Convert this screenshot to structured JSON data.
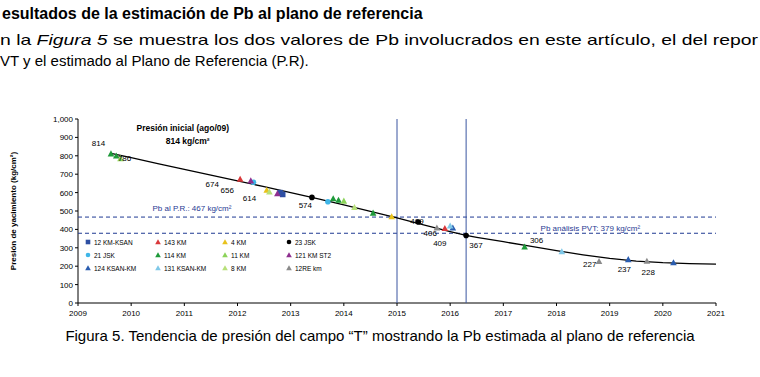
{
  "heading": "esultados de la estimación de Pb al plano de referencia",
  "paragraph": [
    [
      "n la ",
      "Figura 5",
      " se muestra los dos valores de Pb involucrados en este artículo, el del repor"
    ],
    [
      "VT y el estimado al Plano de Referencia (P.R)."
    ]
  ],
  "caption": "Figura 5. Tendencia de presión del campo “T” mostrando la Pb estimada al plano de referencia",
  "chart_data": {
    "type": "scatter",
    "y_label": "Presión de yacimiento (kg/cm²)",
    "xlim": [
      2009,
      2021
    ],
    "xticks": [
      2009,
      2010,
      2011,
      2012,
      2013,
      2014,
      2015,
      2016,
      2017,
      2018,
      2019,
      2020,
      2021
    ],
    "ylim": [
      0,
      1000
    ],
    "yticks": [
      0,
      100,
      200,
      300,
      400,
      500,
      600,
      700,
      800,
      900,
      {
        "value": 1000,
        "label": "1,000"
      }
    ],
    "grid": false,
    "legend": "lower left",
    "hlines": [
      467,
      379
    ],
    "vlines": [
      2015.0,
      2016.3
    ],
    "series": [
      {
        "type": "line",
        "color": "#000000",
        "line_style": "solid",
        "x": [
          2009.6,
          2010,
          2010.5,
          2011,
          2011.5,
          2012,
          2012.5,
          2013,
          2013.5,
          2014,
          2014.5,
          2015,
          2015.5,
          2016,
          2016.3,
          2016.5,
          2017,
          2017.5,
          2018,
          2018.5,
          2019,
          2019.5,
          2020,
          2020.5,
          2021
        ],
        "values": [
          814,
          790,
          758,
          726,
          695,
          664,
          632,
          600,
          567,
          533,
          498,
          462,
          425,
          388,
          367,
          357,
          333,
          309,
          285,
          262,
          242,
          228,
          219,
          214,
          211
        ]
      },
      {
        "name": "12 KM-KSAN",
        "color": "#2e4fa3",
        "marker": "square",
        "x": [
          2012.8,
          2012.85
        ],
        "values": [
          600,
          590
        ]
      },
      {
        "name": "143 KM",
        "color": "#d9383a",
        "marker": "triangle",
        "x": [
          2012.05,
          2015.9
        ],
        "values": [
          674,
          406
        ]
      },
      {
        "name": "4 KM",
        "color": "#e8c21c",
        "marker": "triangle",
        "x": [
          2012.55,
          2014.9
        ],
        "values": [
          614,
          470
        ]
      },
      {
        "name": "23 JSK",
        "color": "#000000",
        "marker": "circle",
        "x": [
          2013.4,
          2015.4,
          2016.3
        ],
        "values": [
          574,
          440,
          367
        ]
      },
      {
        "name": "21 JSK",
        "color": "#3fb6e8",
        "marker": "circle",
        "x": [
          2012.3,
          2013.7
        ],
        "values": [
          656,
          550
        ]
      },
      {
        "name": "114 KM",
        "color": "#1e9a3a",
        "marker": "triangle",
        "x": [
          2009.62,
          2009.72,
          2013.8,
          2013.9,
          2014.55,
          2017.4
        ],
        "values": [
          812,
          800,
          568,
          560,
          490,
          306
        ]
      },
      {
        "name": "11 KM",
        "color": "#8cd35a",
        "marker": "triangle",
        "x": [
          2009.8,
          2014.0
        ],
        "values": [
          786,
          555
        ]
      },
      {
        "name": "121 KM ST2",
        "color": "#8e2f8f",
        "marker": "triangle",
        "x": [
          2012.25,
          2012.75
        ],
        "values": [
          665,
          595
        ]
      },
      {
        "name": "124 KSAN-KM",
        "color": "#2a5db0",
        "marker": "triangle",
        "x": [
          2016.05,
          2019.35,
          2020.2
        ],
        "values": [
          409,
          237,
          220
        ]
      },
      {
        "name": "131 KSAN-KM",
        "color": "#7fc8e8",
        "marker": "triangle",
        "x": [
          2016.0,
          2018.1
        ],
        "values": [
          420,
          280
        ]
      },
      {
        "name": "8 KM",
        "color": "#b7e07a",
        "marker": "triangle",
        "x": [
          2012.6,
          2014.2
        ],
        "values": [
          605,
          520
        ]
      },
      {
        "name": "12RE km",
        "color": "#8a8a8a",
        "marker": "triangle",
        "x": [
          2015.75,
          2018.8,
          2019.7
        ],
        "values": [
          409,
          227,
          228
        ]
      }
    ],
    "annotations": [
      {
        "text": "Presión inicial (ago/09)",
        "x": 2010.1,
        "y": 935,
        "color": "#000000"
      },
      {
        "text": "814 kg/cm²",
        "x": 2010.65,
        "y": 865,
        "color": "#000000"
      },
      {
        "text": "Pb al P.R.: 467 kg/cm²",
        "x": 2010.4,
        "y": 500,
        "color": "#1f3a93"
      },
      {
        "text": "Pb análisis PVT: 379 kg/cm²",
        "x": 2017.7,
        "y": 392,
        "color": "#1f3a93"
      },
      {
        "text": "814",
        "x": 2009.26,
        "y": 853,
        "color": "#000000"
      },
      {
        "text": "786",
        "x": 2009.75,
        "y": 772,
        "color": "#000000"
      },
      {
        "text": "674",
        "x": 2011.4,
        "y": 630,
        "color": "#000000"
      },
      {
        "text": "656",
        "x": 2011.68,
        "y": 600,
        "color": "#000000"
      },
      {
        "text": "614",
        "x": 2012.1,
        "y": 556,
        "color": "#000000"
      },
      {
        "text": "574",
        "x": 2013.15,
        "y": 514,
        "color": "#000000"
      },
      {
        "text": "409",
        "x": 2015.25,
        "y": 429,
        "color": "#000000"
      },
      {
        "text": "406",
        "x": 2015.5,
        "y": 362,
        "color": "#000000"
      },
      {
        "text": "409",
        "x": 2015.68,
        "y": 310,
        "color": "#000000"
      },
      {
        "text": "367",
        "x": 2016.36,
        "y": 299,
        "color": "#000000"
      },
      {
        "text": "306",
        "x": 2017.5,
        "y": 326,
        "color": "#000000"
      },
      {
        "text": "227",
        "x": 2018.5,
        "y": 196,
        "color": "#000000"
      },
      {
        "text": "237",
        "x": 2019.15,
        "y": 168,
        "color": "#000000"
      },
      {
        "text": "228",
        "x": 2019.6,
        "y": 150,
        "color": "#000000"
      }
    ]
  }
}
